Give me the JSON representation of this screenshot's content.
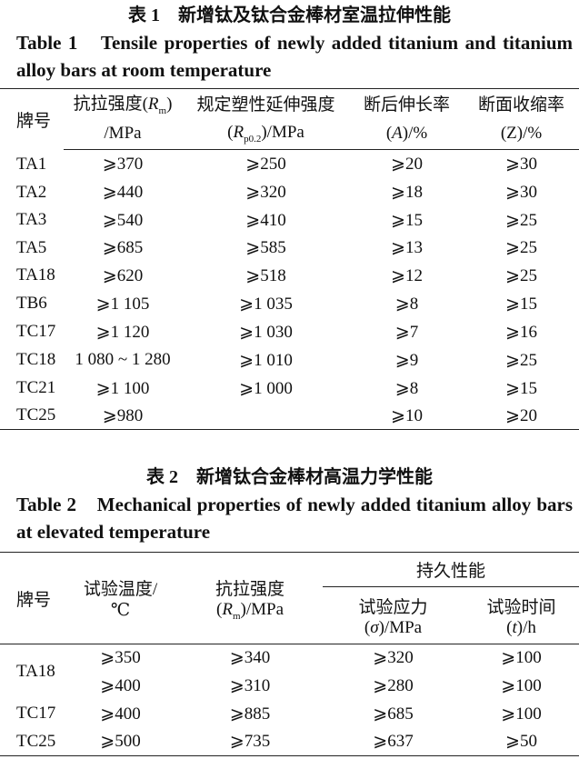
{
  "table1": {
    "title_cn": "表 1　新增钛及钛合金棒材室温拉伸性能",
    "title_en": "Table 1　Tensile properties of newly added titanium and titanium alloy bars at room temperature",
    "headers": {
      "grade": "牌号",
      "rm_cn": "抗拉强度(",
      "rm_sym": "R",
      "rm_sub": "m",
      "rm_close": ")",
      "rm_unit": "/MPa",
      "rp_cn": "规定塑性延伸强度",
      "rp_open": "(",
      "rp_sym": "R",
      "rp_sub": "p0.2",
      "rp_unit": ")/MPa",
      "a_cn": "断后伸长率",
      "a_open": "(",
      "a_sym": "A",
      "a_unit": ")/%",
      "z_cn": "断面收缩率",
      "z_unit": "(Z)/%"
    },
    "rows": [
      [
        "TA1",
        "⩾370",
        "⩾250",
        "⩾20",
        "⩾30"
      ],
      [
        "TA2",
        "⩾440",
        "⩾320",
        "⩾18",
        "⩾30"
      ],
      [
        "TA3",
        "⩾540",
        "⩾410",
        "⩾15",
        "⩾25"
      ],
      [
        "TA5",
        "⩾685",
        "⩾585",
        "⩾13",
        "⩾25"
      ],
      [
        "TA18",
        "⩾620",
        "⩾518",
        "⩾12",
        "⩾25"
      ],
      [
        "TB6",
        "⩾1 105",
        "⩾1 035",
        "⩾8",
        "⩾15"
      ],
      [
        "TC17",
        "⩾1 120",
        "⩾1 030",
        "⩾7",
        "⩾16"
      ],
      [
        "TC18",
        "1 080 ~ 1 280",
        "⩾1 010",
        "⩾9",
        "⩾25"
      ],
      [
        "TC21",
        "⩾1 100",
        "⩾1 000",
        "⩾8",
        "⩾15"
      ],
      [
        "TC25",
        "⩾980",
        "",
        "⩾10",
        "⩾20"
      ]
    ]
  },
  "table2": {
    "title_cn": "表 2　新增钛合金棒材高温力学性能",
    "title_en": "Table 2　Mechanical properties of newly added titanium alloy bars at elevated temperature",
    "headers": {
      "grade": "牌号",
      "temp_cn": "试验温度/",
      "temp_unit": "℃",
      "rm_cn": "抗拉强度",
      "rm_open": "(",
      "rm_sym": "R",
      "rm_sub": "m",
      "rm_unit": ")/MPa",
      "group": "持久性能",
      "stress_cn": "试验应力",
      "stress_open": "(",
      "stress_sym": "σ",
      "stress_unit": ")/MPa",
      "time_cn": "试验时间",
      "time_open": "(",
      "time_sym": "t",
      "time_unit": ")/h"
    },
    "rows": [
      [
        "TA18",
        "⩾350",
        "⩾340",
        "⩾320",
        "⩾100"
      ],
      [
        "",
        "⩾400",
        "⩾310",
        "⩾280",
        "⩾100"
      ],
      [
        "TC17",
        "⩾400",
        "⩾885",
        "⩾685",
        "⩾100"
      ],
      [
        "TC25",
        "⩾500",
        "⩾735",
        "⩾637",
        "⩾50"
      ]
    ]
  }
}
